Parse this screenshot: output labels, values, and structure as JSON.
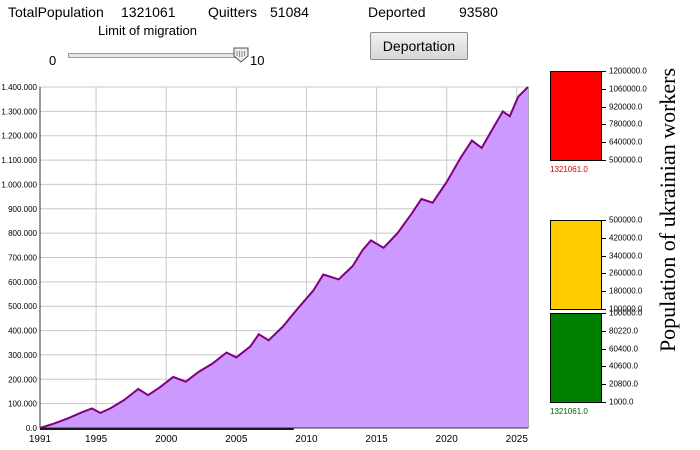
{
  "header": {
    "total_population_label": "TotalPopulation",
    "total_population_value": "1321061",
    "quitters_label": "Quitters",
    "quitters_value": "51084",
    "deported_label": "Deported",
    "deported_value": "93580"
  },
  "slider": {
    "label": "Limit of migration",
    "min_label": "0",
    "max_label": "10",
    "value": 10
  },
  "deportation_button": {
    "label": "Deportation"
  },
  "side_title": "Population of ukrainian workers",
  "gauges": [
    {
      "name": "red",
      "color": "#ff0000",
      "value_color": "#cc0000",
      "ticks": [
        "1200000.0",
        "1060000.0",
        "920000.0",
        "780000.0",
        "640000.0",
        "500000.0"
      ],
      "value_label": "1321061.0"
    },
    {
      "name": "yellow",
      "color": "#ffcc00",
      "value_color": "#e6b800",
      "ticks": [
        "500000.0",
        "420000.0",
        "340000.0",
        "260000.0",
        "180000.0",
        "100000.0"
      ],
      "value_label": "1321061.0"
    },
    {
      "name": "green",
      "color": "#008000",
      "value_color": "#006400",
      "ticks": [
        "100000.0",
        "80220.0",
        "60400.0",
        "40600.0",
        "20800.0",
        "1000.0"
      ],
      "value_label": "1321061.0"
    }
  ],
  "chart_data": {
    "type": "area",
    "fill_color": "#cc99ff",
    "line_color": "#800080",
    "grid": true,
    "xlim": [
      1991,
      2025.8
    ],
    "ylim": [
      0,
      1400000
    ],
    "x_ticks": [
      "1991",
      "1995",
      "2000",
      "2005",
      "2010",
      "2015",
      "2020",
      "2025"
    ],
    "y_ticks": [
      "0.0",
      "100.000",
      "200.000",
      "300.000",
      "400.000",
      "500.000",
      "600.000",
      "700.000",
      "800.000",
      "900.000",
      "1.000.000",
      "1.100.000",
      "1.200.000",
      "1.300.000",
      "1.400.000"
    ],
    "x": [
      1991,
      1992,
      1993,
      1994,
      1994.7,
      1995.3,
      1996,
      1997,
      1998,
      1998.7,
      1999.5,
      2000.5,
      2001.4,
      2002.3,
      2003.3,
      2004.3,
      2005,
      2006,
      2006.6,
      2007.3,
      2008.3,
      2009.3,
      2010.5,
      2011.2,
      2012.3,
      2013.3,
      2014,
      2014.6,
      2015.5,
      2016.5,
      2017.5,
      2018.2,
      2019,
      2020,
      2021,
      2021.8,
      2022.5,
      2023.4,
      2024,
      2024.5,
      2025.1,
      2025.8
    ],
    "y": [
      0,
      18000,
      40000,
      65000,
      80000,
      62000,
      80000,
      115000,
      160000,
      135000,
      165000,
      210000,
      190000,
      230000,
      265000,
      310000,
      290000,
      335000,
      385000,
      360000,
      415000,
      485000,
      565000,
      630000,
      610000,
      665000,
      730000,
      770000,
      740000,
      800000,
      880000,
      940000,
      925000,
      1010000,
      1110000,
      1180000,
      1150000,
      1240000,
      1300000,
      1280000,
      1360000,
      1400000
    ]
  }
}
